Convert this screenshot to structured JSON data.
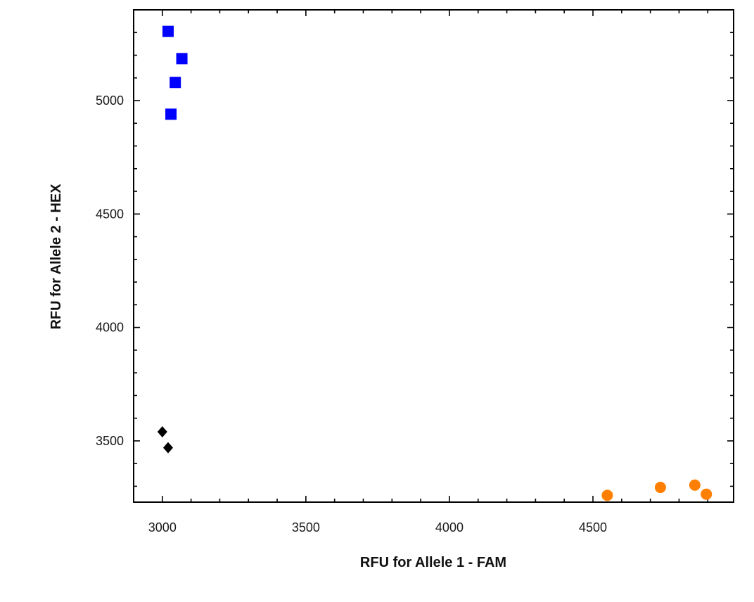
{
  "chart_data": {
    "type": "scatter",
    "title": "",
    "xlabel": "RFU for Allele 1 - FAM",
    "ylabel": "RFU for Allele 2 - HEX",
    "xlim": [
      2900,
      4990
    ],
    "ylim": [
      3230,
      5400
    ],
    "xticks": [
      3000,
      3500,
      4000,
      4500
    ],
    "yticks": [
      3500,
      4000,
      4500,
      5000
    ],
    "grid": false,
    "legend": "none",
    "series": [
      {
        "marker": "square",
        "color": "#0000ff",
        "points": [
          {
            "x": 3020,
            "y": 5305
          },
          {
            "x": 3068,
            "y": 5185
          },
          {
            "x": 3045,
            "y": 5080
          },
          {
            "x": 3030,
            "y": 4940
          }
        ]
      },
      {
        "marker": "diamond",
        "color": "#000000",
        "points": [
          {
            "x": 3000,
            "y": 3540
          },
          {
            "x": 3020,
            "y": 3470
          }
        ]
      },
      {
        "marker": "circle",
        "color": "#ff8000",
        "points": [
          {
            "x": 4550,
            "y": 3260
          },
          {
            "x": 4735,
            "y": 3295
          },
          {
            "x": 4855,
            "y": 3305
          },
          {
            "x": 4895,
            "y": 3265
          }
        ]
      }
    ]
  }
}
